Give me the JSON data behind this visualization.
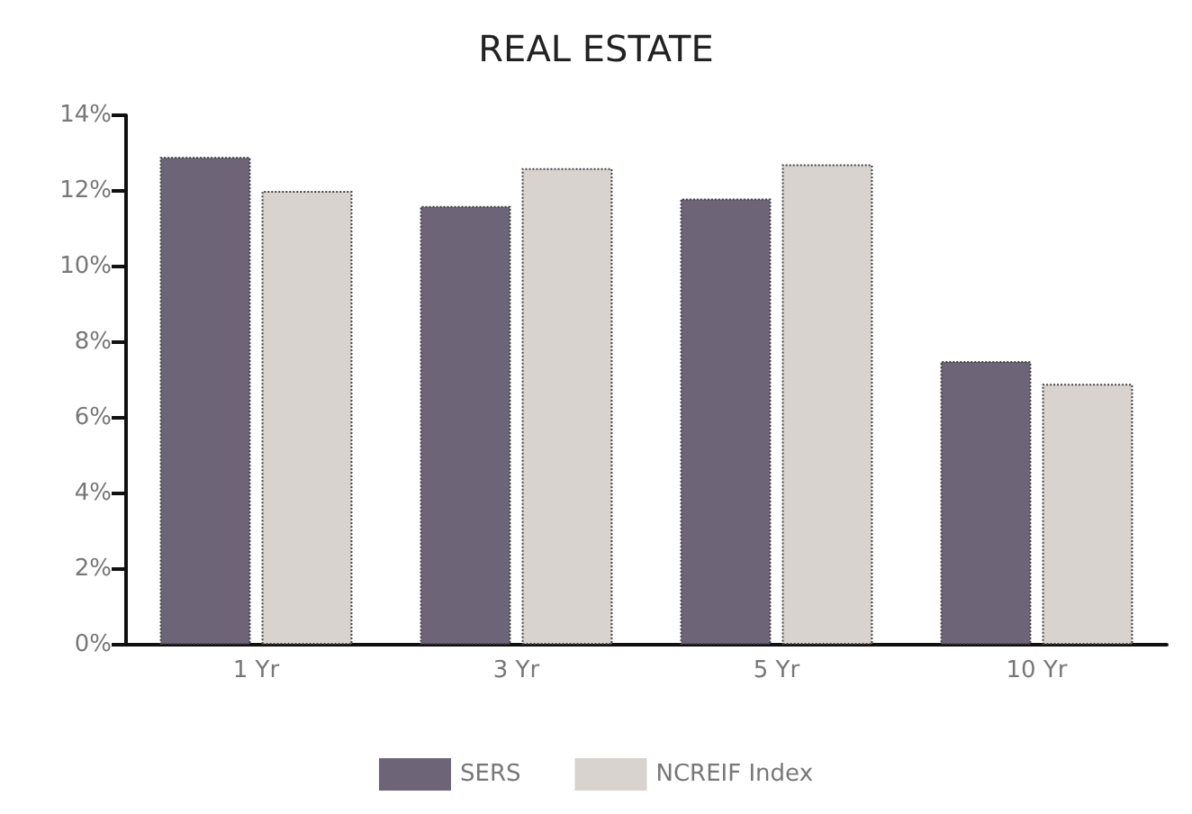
{
  "chart_data": {
    "type": "bar",
    "title": "REAL ESTATE",
    "categories": [
      "1 Yr",
      "3 Yr",
      "5 Yr",
      "10 Yr"
    ],
    "series": [
      {
        "name": "SERS",
        "color": "#6e6478",
        "values": [
          12.9,
          11.6,
          11.8,
          7.5
        ]
      },
      {
        "name": "NCREIF Index",
        "color": "#d9d3d0",
        "values": [
          12.0,
          12.6,
          12.7,
          6.9
        ]
      }
    ],
    "ylim": [
      0,
      14
    ],
    "yticks": [
      {
        "value": 0,
        "label": "0%"
      },
      {
        "value": 2,
        "label": "2%"
      },
      {
        "value": 4,
        "label": "4%"
      },
      {
        "value": 6,
        "label": "6%"
      },
      {
        "value": 8,
        "label": "8%"
      },
      {
        "value": 10,
        "label": "10%"
      },
      {
        "value": 12,
        "label": "12%"
      },
      {
        "value": 14,
        "label": "14%"
      }
    ],
    "grid": false,
    "legend": "bottom"
  }
}
